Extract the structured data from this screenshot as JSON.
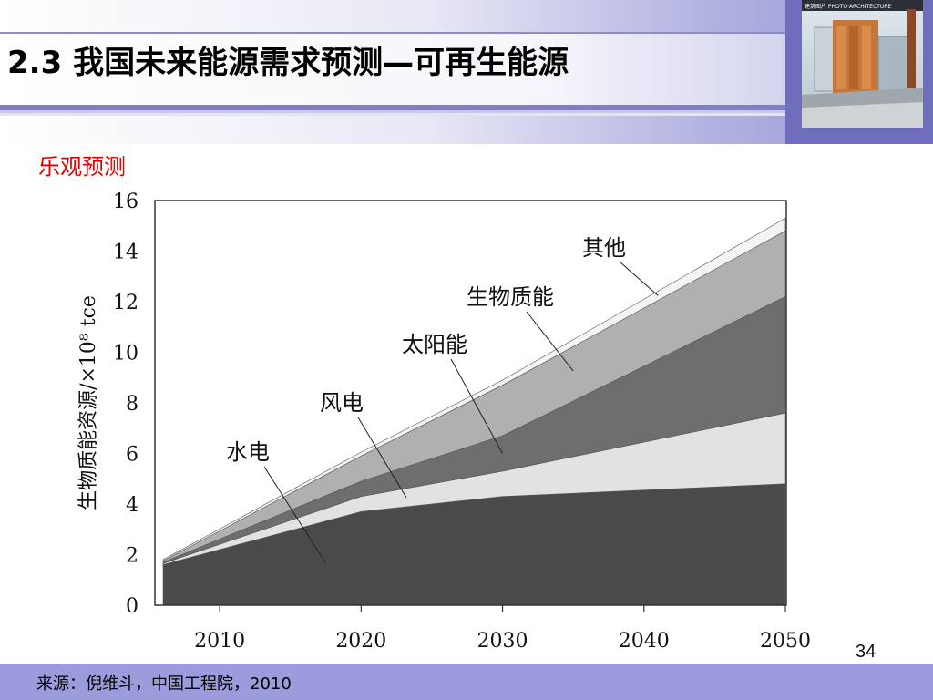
{
  "slide": {
    "title": "2.3 我国未来能源需求预测—可再生能源",
    "subtitle": "乐观预测",
    "page_number": "34",
    "source": "来源：倪维斗，中国工程院，2010",
    "thumbnail_caption": "建筑图片 PHOTO·ARCHITECTURE"
  },
  "colors": {
    "accent": "#7f7fc3",
    "footer": "#9c9cdc",
    "subtitle_red": "#e00000"
  },
  "chart_data": {
    "type": "area",
    "stacked": true,
    "title": "",
    "xlabel": "",
    "ylabel": "生物质能资源/×10⁸ tce",
    "x": [
      2006,
      2020,
      2030,
      2050
    ],
    "xticks": [
      "2010",
      "2020",
      "2030",
      "2040",
      "2050"
    ],
    "xlim": [
      2006,
      2050
    ],
    "ylim": [
      0,
      16
    ],
    "yticks": [
      "0",
      "2",
      "4",
      "6",
      "8",
      "10",
      "12",
      "14",
      "16"
    ],
    "grid": false,
    "series": [
      {
        "name": "水电",
        "values": [
          1.6,
          3.7,
          4.3,
          4.8
        ],
        "color": "#4a4a4a"
      },
      {
        "name": "风电",
        "values": [
          0.05,
          0.6,
          1.0,
          2.8
        ],
        "color": "#e2e2e2"
      },
      {
        "name": "太阳能",
        "values": [
          0.05,
          0.6,
          1.4,
          4.6
        ],
        "color": "#6e6e6e"
      },
      {
        "name": "生物质能",
        "values": [
          0.05,
          1.0,
          2.0,
          2.6
        ],
        "color": "#b0b0b0"
      },
      {
        "name": "其他",
        "values": [
          0.05,
          0.15,
          0.2,
          0.5
        ],
        "color": "#f4f4f4"
      }
    ]
  }
}
